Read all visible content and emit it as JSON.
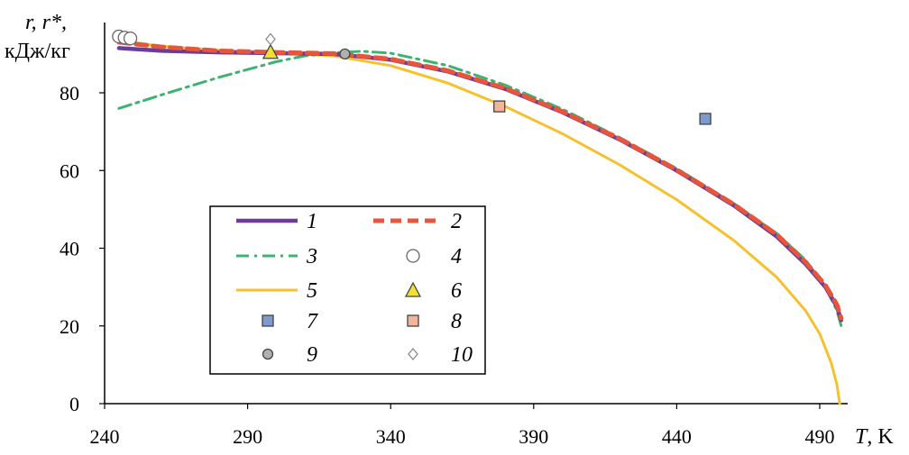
{
  "chart_data": {
    "type": "line",
    "title": "",
    "ylabel_line1_italic": "r, r*,",
    "ylabel_line2": "кДж/кг",
    "xlabel_italic": "T",
    "xlabel_unit": ", K",
    "xlim": [
      240,
      500
    ],
    "ylim": [
      0,
      95
    ],
    "x_ticks": [
      240,
      290,
      340,
      390,
      440,
      490
    ],
    "y_ticks": [
      0,
      20,
      40,
      60,
      80
    ],
    "grid": false,
    "legend_position": "bottom-center",
    "colors": {
      "s1": "#6a3d9a",
      "s2": "#e8553a",
      "s3": "#3cb371",
      "s4": "#8a8a8a",
      "s5": "#f6c12f",
      "s6": "#f0e030",
      "s7": "#7d9bd1",
      "s8": "#f4b49a",
      "s9": "#b0b0b0",
      "s10": "#ffffff"
    },
    "series": [
      {
        "name": "1",
        "style": "line",
        "x": [
          245,
          260,
          280,
          300,
          320,
          340,
          360,
          380,
          400,
          420,
          440,
          460,
          475,
          485,
          492,
          496,
          497.5
        ],
        "y": [
          91.5,
          90.8,
          90.4,
          90.2,
          90.0,
          88.5,
          85.5,
          81.0,
          75.0,
          68.0,
          60.0,
          51.0,
          43.0,
          36.0,
          30.0,
          25.0,
          21.5
        ]
      },
      {
        "name": "2",
        "style": "dashed",
        "x": [
          245,
          260,
          280,
          300,
          320,
          340,
          360,
          380,
          400,
          420,
          440,
          460,
          475,
          485,
          492,
          496,
          497.5
        ],
        "y": [
          93.0,
          91.8,
          90.8,
          90.4,
          90.1,
          88.7,
          85.7,
          81.2,
          75.2,
          68.2,
          60.2,
          51.3,
          43.5,
          36.5,
          30.5,
          25.5,
          22.0
        ]
      },
      {
        "name": "3",
        "style": "dashdot",
        "x": [
          245,
          260,
          280,
          300,
          310,
          320,
          330,
          340,
          360,
          380,
          400,
          420,
          440,
          460,
          475,
          485,
          492,
          496,
          497.5
        ],
        "y": [
          76.0,
          79.5,
          84.0,
          88.0,
          89.5,
          90.3,
          90.7,
          90.2,
          87.0,
          82.0,
          75.8,
          68.5,
          60.5,
          51.5,
          43.8,
          37.0,
          30.0,
          24.0,
          20.0
        ]
      },
      {
        "name": "4",
        "style": "marker",
        "marker": "circle",
        "x": [
          245,
          247,
          249
        ],
        "y": [
          94.5,
          94.2,
          94.0
        ]
      },
      {
        "name": "5",
        "style": "line",
        "x": [
          245,
          260,
          280,
          300,
          320,
          340,
          360,
          380,
          400,
          420,
          440,
          460,
          475,
          485,
          490,
          494,
          496,
          497
        ],
        "y": [
          93.5,
          92.0,
          91.0,
          90.3,
          89.5,
          87.0,
          82.5,
          76.5,
          69.5,
          61.5,
          52.5,
          42.0,
          32.5,
          24.0,
          18.0,
          10.5,
          5.0,
          0.0
        ]
      },
      {
        "name": "6",
        "style": "marker",
        "marker": "triangle",
        "x": [
          298
        ],
        "y": [
          90.5
        ]
      },
      {
        "name": "7",
        "style": "marker",
        "marker": "square",
        "x": [
          450
        ],
        "y": [
          73.3
        ]
      },
      {
        "name": "8",
        "style": "marker",
        "marker": "square",
        "x": [
          378
        ],
        "y": [
          76.5
        ]
      },
      {
        "name": "9",
        "style": "marker",
        "marker": "small-circle",
        "x": [
          324
        ],
        "y": [
          90.0
        ]
      },
      {
        "name": "10",
        "style": "marker",
        "marker": "diamond",
        "x": [
          298
        ],
        "y": [
          93.8
        ]
      }
    ]
  }
}
